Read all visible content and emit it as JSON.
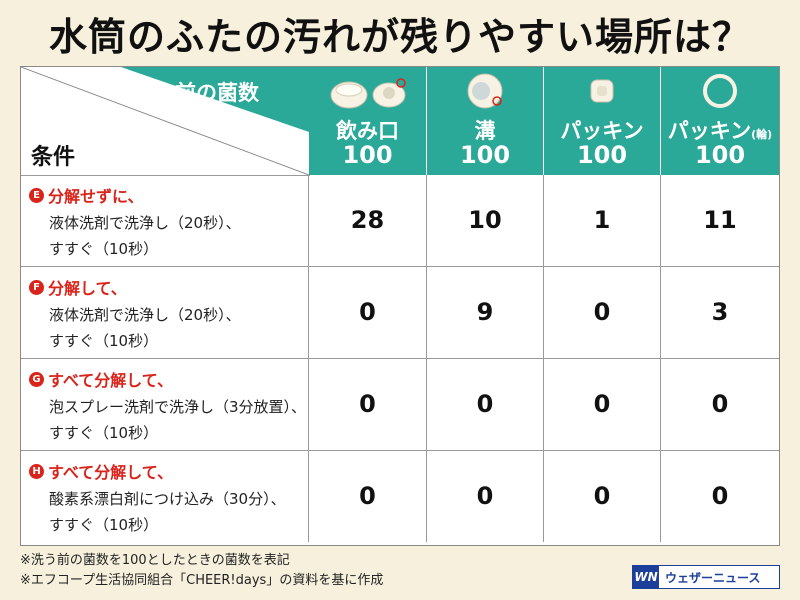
{
  "title": "水筒のふたの汚れが残りやすい場所は？",
  "corner_top": "洗う前の菌数",
  "corner_bottom": "条件",
  "columns": [
    {
      "label": "飲み口",
      "suffix": "",
      "base": "100",
      "icon": "lid-icon"
    },
    {
      "label": "溝",
      "suffix": "",
      "base": "100",
      "icon": "lid-groove-icon"
    },
    {
      "label": "パッキン",
      "suffix": "",
      "base": "100",
      "icon": "gasket-icon"
    },
    {
      "label": "パッキン",
      "suffix": "(輪)",
      "base": "100",
      "icon": "ring-gasket-icon"
    }
  ],
  "rows": [
    {
      "badge": "E",
      "head": "分解せずに、",
      "line1": "液体洗剤で洗浄し（20秒）、",
      "line2": "すすぐ（10秒）",
      "values": [
        "28",
        "10",
        "1",
        "11"
      ]
    },
    {
      "badge": "F",
      "head": "分解して、",
      "line1": "液体洗剤で洗浄し（20秒）、",
      "line2": "すすぐ（10秒）",
      "values": [
        "0",
        "9",
        "0",
        "3"
      ]
    },
    {
      "badge": "G",
      "head": "すべて分解して、",
      "line1": "泡スプレー洗剤で洗浄し（3分放置）、",
      "line2": "すすぐ（10秒）",
      "values": [
        "0",
        "0",
        "0",
        "0"
      ]
    },
    {
      "badge": "H",
      "head": "すべて分解して、",
      "line1": "酸素系漂白剤につけ込み（30分）、",
      "line2": "すすぐ（10秒）",
      "values": [
        "0",
        "0",
        "0",
        "0"
      ]
    }
  ],
  "notes": [
    "※洗う前の菌数を100としたときの菌数を表記",
    "※エフコープ生活協同組合「CHEER!days」の資料を基に作成"
  ],
  "logo": {
    "mark": "WN",
    "text": "ウェザーニュース"
  },
  "colors": {
    "header": "#2aa898",
    "accent": "#d9241b",
    "background": "#f6f0dc",
    "brand": "#1c3f9a"
  },
  "chart_data": {
    "type": "table",
    "title": "水筒のふたの汚れが残りやすい場所は？",
    "columns": [
      "飲み口",
      "溝",
      "パッキン",
      "パッキン(輪)"
    ],
    "baseline": [
      100,
      100,
      100,
      100
    ],
    "rows": [
      {
        "condition": "E 分解せずに、液体洗剤で洗浄し（20秒）、すすぐ（10秒）",
        "values": [
          28,
          10,
          1,
          11
        ]
      },
      {
        "condition": "F 分解して、液体洗剤で洗浄し（20秒）、すすぐ（10秒）",
        "values": [
          0,
          9,
          0,
          3
        ]
      },
      {
        "condition": "G すべて分解して、泡スプレー洗剤で洗浄し（3分放置）、すすぐ（10秒）",
        "values": [
          0,
          0,
          0,
          0
        ]
      },
      {
        "condition": "H すべて分解して、酸素系漂白剤につけ込み（30分）、すすぐ（10秒）",
        "values": [
          0,
          0,
          0,
          0
        ]
      }
    ]
  }
}
